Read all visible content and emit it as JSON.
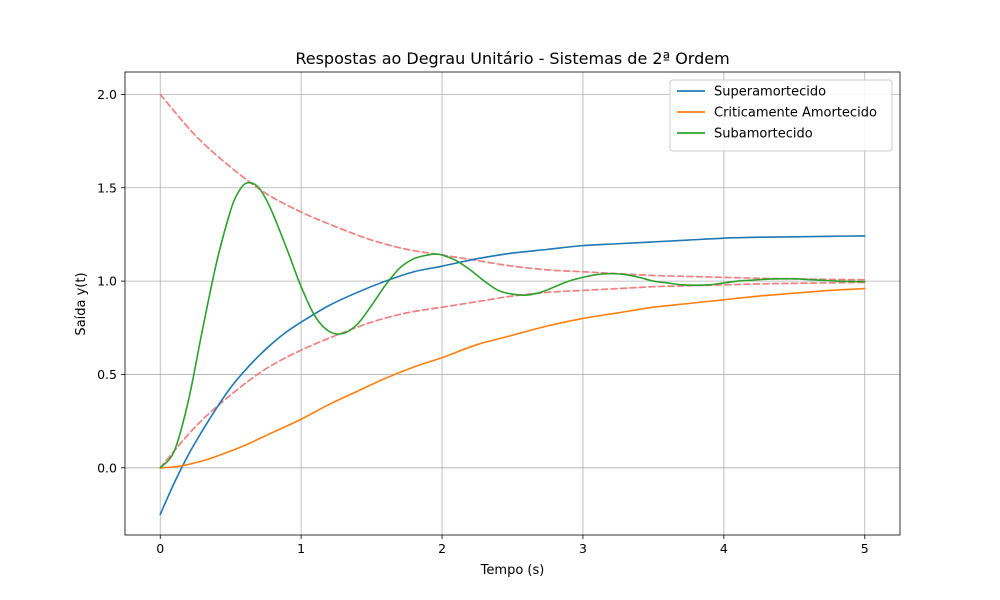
{
  "chart_data": {
    "type": "line",
    "title": "Respostas ao Degrau Unitário - Sistemas de 2ª Ordem",
    "xlabel": "Tempo (s)",
    "ylabel": "Saída y(t)",
    "xlim": [
      -0.25,
      5.25
    ],
    "ylim": [
      -0.36,
      2.12
    ],
    "x_ticks": [
      0,
      1,
      2,
      3,
      4,
      5
    ],
    "x_tick_labels": [
      "0",
      "1",
      "2",
      "3",
      "4",
      "5"
    ],
    "y_ticks": [
      0.0,
      0.5,
      1.0,
      1.5,
      2.0
    ],
    "y_tick_labels": [
      "0.0",
      "0.5",
      "1.0",
      "1.5",
      "2.0"
    ],
    "grid": true,
    "legend_position": "top-right",
    "series": [
      {
        "name": "Superamortecido",
        "color": "#1f77b4",
        "style": "solid",
        "x": [
          0,
          0.1,
          0.2,
          0.3,
          0.4,
          0.5,
          0.6,
          0.7,
          0.8,
          0.9,
          1.0,
          1.2,
          1.4,
          1.6,
          1.8,
          2.0,
          2.25,
          2.5,
          2.75,
          3.0,
          3.25,
          3.5,
          3.75,
          4.0,
          4.25,
          4.5,
          4.75,
          5.0
        ],
        "y": [
          -0.25,
          -0.08,
          0.07,
          0.2,
          0.32,
          0.43,
          0.52,
          0.6,
          0.67,
          0.73,
          0.78,
          0.87,
          0.94,
          1.0,
          1.05,
          1.08,
          1.12,
          1.15,
          1.17,
          1.19,
          1.2,
          1.21,
          1.22,
          1.23,
          1.235,
          1.237,
          1.24,
          1.242
        ]
      },
      {
        "name": "Criticamente Amortecido",
        "color": "#ff7f0e",
        "style": "solid",
        "x": [
          0,
          0.1,
          0.2,
          0.3,
          0.4,
          0.5,
          0.6,
          0.8,
          1.0,
          1.2,
          1.4,
          1.6,
          1.8,
          2.0,
          2.25,
          2.5,
          2.75,
          3.0,
          3.25,
          3.5,
          3.75,
          4.0,
          4.25,
          4.5,
          4.75,
          5.0
        ],
        "y": [
          0.0,
          0.005,
          0.018,
          0.037,
          0.062,
          0.09,
          0.12,
          0.19,
          0.26,
          0.34,
          0.41,
          0.48,
          0.54,
          0.59,
          0.66,
          0.71,
          0.76,
          0.8,
          0.83,
          0.86,
          0.88,
          0.9,
          0.92,
          0.935,
          0.95,
          0.96
        ]
      },
      {
        "name": "Subamortecido",
        "color": "#2ca02c",
        "style": "solid",
        "x": [
          0,
          0.1,
          0.2,
          0.3,
          0.4,
          0.5,
          0.55,
          0.6,
          0.65,
          0.7,
          0.75,
          0.8,
          0.9,
          1.0,
          1.1,
          1.2,
          1.3,
          1.4,
          1.5,
          1.6,
          1.7,
          1.8,
          1.9,
          1.95,
          2.0,
          2.1,
          2.2,
          2.3,
          2.4,
          2.5,
          2.6,
          2.7,
          2.8,
          2.9,
          3.0,
          3.1,
          3.2,
          3.3,
          3.4,
          3.5,
          3.6,
          3.7,
          3.8,
          3.9,
          4.0,
          4.1,
          4.2,
          4.3,
          4.4,
          4.5,
          4.6,
          4.7,
          4.8,
          4.9,
          5.0
        ],
        "y": [
          0.0,
          0.09,
          0.36,
          0.74,
          1.1,
          1.38,
          1.47,
          1.52,
          1.525,
          1.5,
          1.44,
          1.36,
          1.17,
          0.97,
          0.81,
          0.73,
          0.72,
          0.77,
          0.87,
          0.98,
          1.07,
          1.12,
          1.14,
          1.145,
          1.14,
          1.11,
          1.06,
          1.0,
          0.95,
          0.93,
          0.925,
          0.94,
          0.97,
          1.0,
          1.02,
          1.035,
          1.04,
          1.035,
          1.02,
          1.0,
          0.99,
          0.98,
          0.978,
          0.98,
          0.99,
          1.0,
          1.005,
          1.01,
          1.012,
          1.012,
          1.008,
          1.004,
          1.0,
          0.998,
          0.997
        ]
      },
      {
        "name": "",
        "color": "#f08080",
        "style": "dashed",
        "in_legend": false,
        "x": [
          0,
          0.25,
          0.5,
          0.75,
          1.0,
          1.25,
          1.5,
          1.75,
          2.0,
          2.25,
          2.5,
          2.75,
          3.0,
          3.25,
          3.5,
          3.75,
          4.0,
          4.25,
          4.5,
          4.75,
          5.0
        ],
        "y": [
          2.0,
          1.78,
          1.61,
          1.47,
          1.37,
          1.29,
          1.22,
          1.17,
          1.14,
          1.11,
          1.08,
          1.06,
          1.05,
          1.04,
          1.03,
          1.025,
          1.02,
          1.015,
          1.012,
          1.009,
          1.007
        ]
      },
      {
        "name": "",
        "color": "#f08080",
        "style": "dashed",
        "in_legend": false,
        "x": [
          0,
          0.25,
          0.5,
          0.75,
          1.0,
          1.25,
          1.5,
          1.75,
          2.0,
          2.25,
          2.5,
          2.75,
          3.0,
          3.25,
          3.5,
          3.75,
          4.0,
          4.25,
          4.5,
          4.75,
          5.0
        ],
        "y": [
          0.0,
          0.22,
          0.39,
          0.53,
          0.63,
          0.71,
          0.78,
          0.83,
          0.86,
          0.89,
          0.92,
          0.94,
          0.95,
          0.96,
          0.97,
          0.975,
          0.98,
          0.985,
          0.988,
          0.991,
          0.993
        ]
      }
    ]
  }
}
